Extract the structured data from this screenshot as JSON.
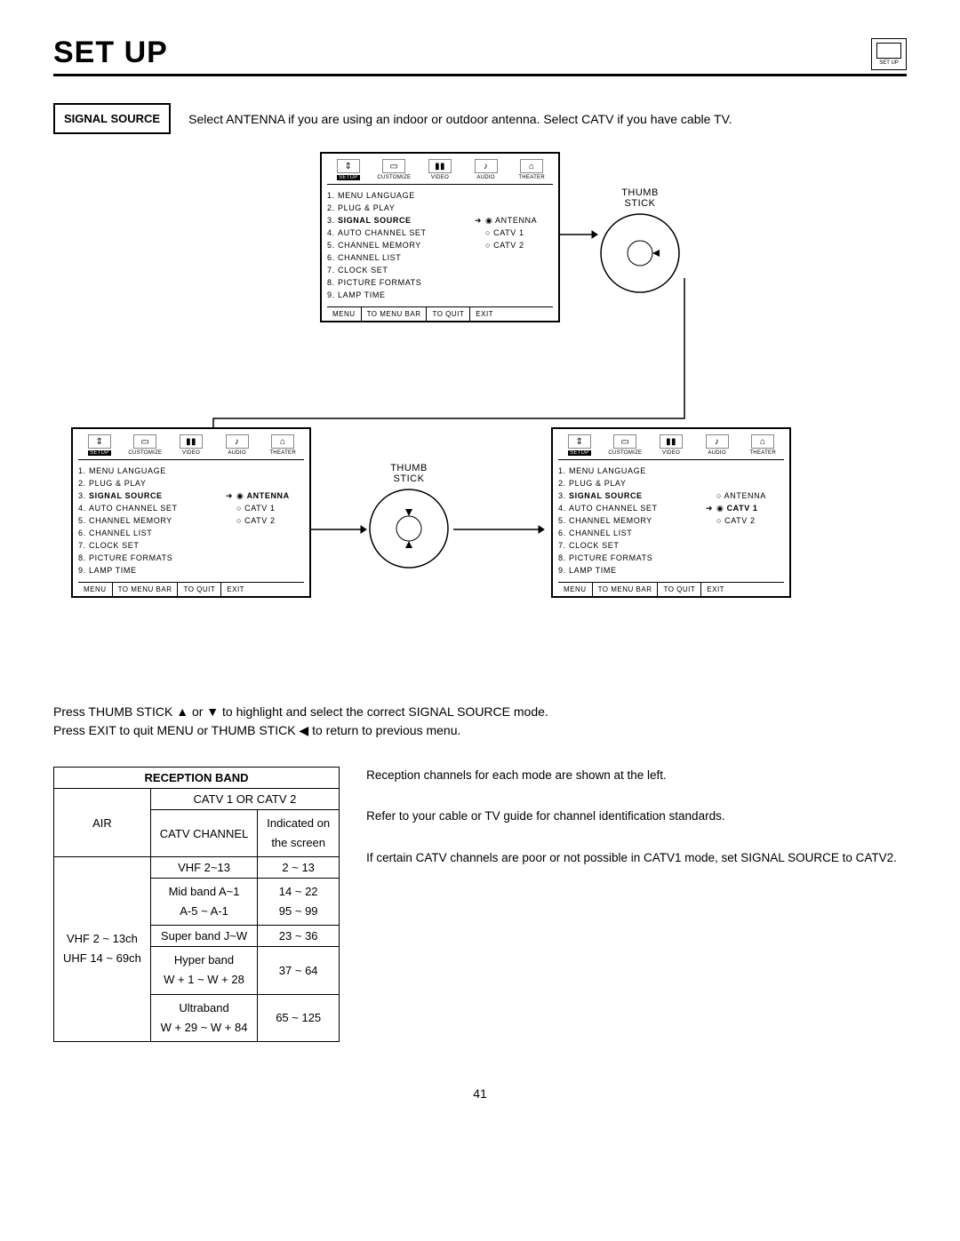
{
  "page": {
    "title": "SET UP",
    "icon_label": "SET UP",
    "number": "41"
  },
  "signal": {
    "box": "SIGNAL SOURCE",
    "desc": "Select ANTENNA if you are using an indoor or outdoor antenna.  Select CATV if you have cable TV."
  },
  "menuIcons": [
    "SETUP",
    "CUSTOMIZE",
    "VIDEO",
    "AUDIO",
    "THEATER"
  ],
  "glyphs": [
    "⇕",
    "▭",
    "▮▮",
    "♪",
    "⌂"
  ],
  "menuFooter": [
    "MENU",
    "TO MENU BAR",
    "TO QUIT",
    "EXIT"
  ],
  "menuItems": [
    {
      "n": "1.",
      "label": "MENU LANGUAGE"
    },
    {
      "n": "2.",
      "label": "PLUG & PLAY"
    },
    {
      "n": "3.",
      "label": "SIGNAL SOURCE",
      "bold": true
    },
    {
      "n": "4.",
      "label": "AUTO CHANNEL SET"
    },
    {
      "n": "5.",
      "label": "CHANNEL MEMORY"
    },
    {
      "n": "6.",
      "label": "CHANNEL LIST"
    },
    {
      "n": "7.",
      "label": "CLOCK SET"
    },
    {
      "n": "8.",
      "label": "PICTURE FORMATS"
    },
    {
      "n": "9.",
      "label": "LAMP TIME"
    }
  ],
  "opts": {
    "antenna": "ANTENNA",
    "catv1": "CATV 1",
    "catv2": "CATV 2"
  },
  "thumb_label": "THUMB\nSTICK",
  "instructions": [
    "Press THUMB STICK ▲ or ▼ to highlight and select the correct SIGNAL SOURCE mode.",
    "Press EXIT to quit MENU or THUMB STICK ◀ to return to previous menu."
  ],
  "table": {
    "header": "RECEPTION BAND",
    "air": "AIR",
    "catv_header": "CATV 1 OR CATV 2",
    "catv_ch": "CATV CHANNEL",
    "ind1": "Indicated on",
    "ind2": "the screen",
    "air_rows": [
      "VHF 2 ~ 13ch",
      "UHF 14 ~ 69ch"
    ],
    "rows": [
      {
        "c": "VHF 2~13",
        "i": "2 ~ 13"
      },
      {
        "c": "Mid band A~1",
        "i": "14 ~ 22"
      },
      {
        "c": "A-5 ~ A-1",
        "i": "95 ~ 99"
      },
      {
        "c": "Super band J~W",
        "i": "23 ~ 36"
      },
      {
        "c": "Hyper band",
        "i": "37 ~ 64"
      },
      {
        "c": "W + 1 ~ W + 28",
        "i": ""
      },
      {
        "c": "Ultraband",
        "i": "65 ~ 125"
      },
      {
        "c": "W + 29 ~ W + 84",
        "i": ""
      }
    ]
  },
  "side": [
    "Reception channels for each mode are shown at the left.",
    "Refer to your cable or TV guide for channel identification standards.",
    "If certain CATV channels are poor or not possible in CATV1 mode, set SIGNAL SOURCE to CATV2."
  ]
}
